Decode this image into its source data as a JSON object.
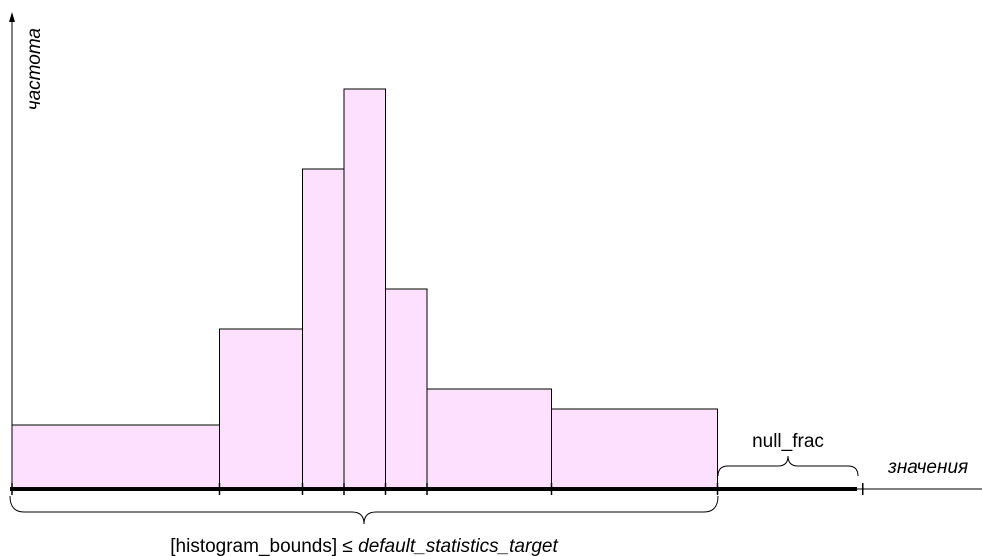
{
  "axes": {
    "y_label": "частота",
    "x_label": "значения"
  },
  "histogram": {
    "fill": "#fde0fd",
    "stroke": "#000000",
    "bars": [
      {
        "from": 0,
        "to": 5,
        "height": 0.16
      },
      {
        "from": 5,
        "to": 7,
        "height": 0.4
      },
      {
        "from": 7,
        "to": 8,
        "height": 0.8
      },
      {
        "from": 8,
        "to": 9,
        "height": 1.0
      },
      {
        "from": 9,
        "to": 10,
        "height": 0.5
      },
      {
        "from": 10,
        "to": 13,
        "height": 0.25
      },
      {
        "from": 13,
        "to": 17,
        "height": 0.2
      }
    ],
    "null_segment": {
      "from": 17,
      "to": 20.5
    }
  },
  "annotations": {
    "null_frac": "null_frac",
    "bounds_prefix": "[histogram_bounds] ≤ ",
    "bounds_suffix": "default_statistics_target"
  }
}
